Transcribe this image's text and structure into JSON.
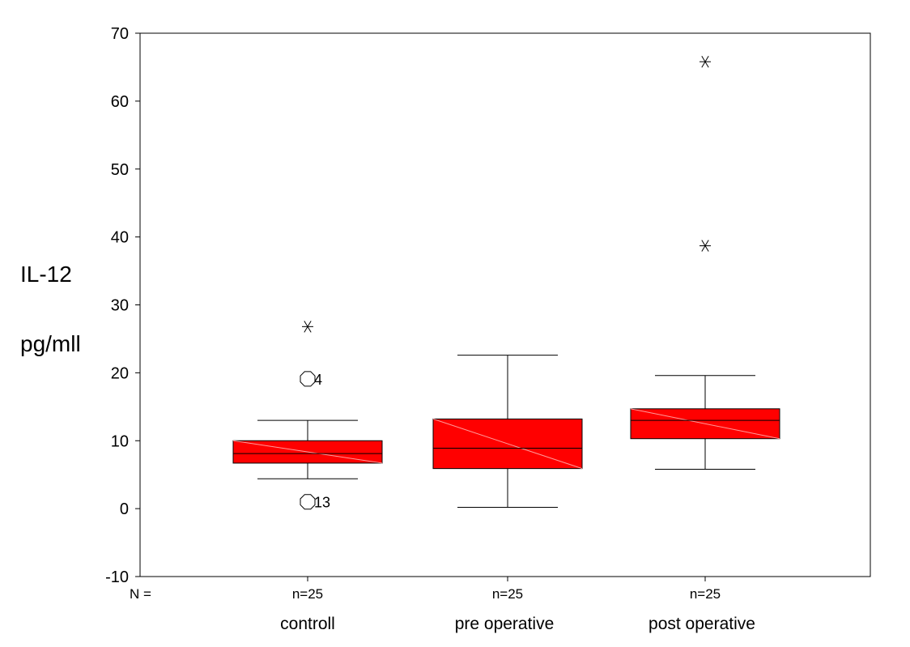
{
  "chart_data": {
    "type": "boxplot",
    "ylabel_line1": "IL-12",
    "ylabel_line2": "pg/mll",
    "ylim": [
      -10,
      70
    ],
    "yticks": [
      -10,
      0,
      10,
      20,
      30,
      40,
      50,
      60,
      70
    ],
    "n_prefix": "N =",
    "grid": false,
    "box_color": "#ff0000",
    "categories": [
      "controll",
      "pre operative",
      "post operative"
    ],
    "n_labels": [
      "n=25",
      "n=25",
      "n=25"
    ],
    "boxes": [
      {
        "category": "controll",
        "whisker_low": 4.4,
        "q1": 6.7,
        "median": 8.1,
        "q3": 10.0,
        "whisker_high": 13.0,
        "outliers": [
          {
            "value": 19.1,
            "marker": "circle",
            "label": "4"
          },
          {
            "value": 1.0,
            "marker": "circle",
            "label": "13"
          }
        ],
        "extremes": [
          {
            "value": 26.8,
            "marker": "star"
          }
        ]
      },
      {
        "category": "pre operative",
        "whisker_low": 0.2,
        "q1": 5.9,
        "median": 8.9,
        "q3": 13.2,
        "whisker_high": 22.6,
        "outliers": [],
        "extremes": []
      },
      {
        "category": "post operative",
        "whisker_low": 5.8,
        "q1": 10.3,
        "median": 13.0,
        "q3": 14.7,
        "whisker_high": 19.6,
        "outliers": [],
        "extremes": [
          {
            "value": 65.8,
            "marker": "star"
          },
          {
            "value": 38.7,
            "marker": "star"
          }
        ]
      }
    ]
  }
}
